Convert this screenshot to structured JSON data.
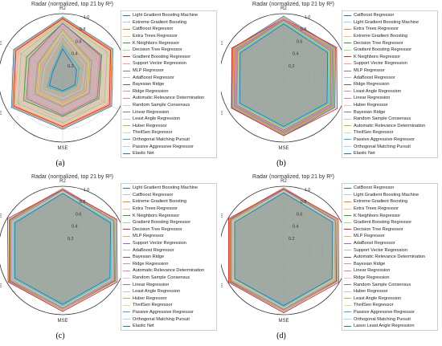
{
  "colors": [
    "#1f77b4",
    "#aec7e8",
    "#ff7f0e",
    "#ffbb78",
    "#2ca02c",
    "#98df8a",
    "#d62728",
    "#ff9896",
    "#9467bd",
    "#c5b0d5",
    "#8c564b",
    "#c49c94",
    "#e377c2",
    "#f7b6d2",
    "#7f7f7f",
    "#c7c7c7",
    "#bcbd22",
    "#dbdb8d",
    "#17becf",
    "#9edae5",
    "#1f77b4"
  ],
  "chart_data": [
    {
      "type": "radar",
      "label": "(a)",
      "title": "Radar (normalized, top 21 by R²)",
      "axes": [
        "R2",
        "RMSE",
        "MAE",
        "MSE",
        "RMSLE",
        "MAPE"
      ],
      "rticks": [
        "0.2",
        "0.4",
        "0.6",
        "0.8",
        "1.0"
      ],
      "series": [
        {
          "name": "Light Gradient Boosting Machine",
          "values": [
            0.95,
            0.9,
            0.88,
            0.8,
            0.92,
            0.88
          ]
        },
        {
          "name": "Extreme Gradient Boosting",
          "values": [
            0.94,
            0.89,
            0.87,
            0.79,
            0.91,
            0.87
          ]
        },
        {
          "name": "CatBoost Regressor",
          "values": [
            0.93,
            0.88,
            0.86,
            0.78,
            0.9,
            0.86
          ]
        },
        {
          "name": "Extra Trees Regressor",
          "values": [
            0.9,
            0.85,
            0.82,
            0.75,
            0.86,
            0.8
          ]
        },
        {
          "name": "K Neighbors Regressor",
          "values": [
            0.85,
            0.7,
            0.65,
            0.6,
            0.7,
            0.65
          ]
        },
        {
          "name": "Decision Tree Regressor",
          "values": [
            0.88,
            0.8,
            0.75,
            0.7,
            0.8,
            0.75
          ]
        },
        {
          "name": "Gradient Boosting Regressor",
          "values": [
            0.92,
            0.86,
            0.84,
            0.76,
            0.88,
            0.84
          ]
        },
        {
          "name": "Support Vector Regression",
          "values": [
            0.8,
            0.65,
            0.6,
            0.55,
            0.62,
            0.58
          ]
        },
        {
          "name": "MLP Regressor",
          "values": [
            0.85,
            0.68,
            0.62,
            0.58,
            0.65,
            0.6
          ]
        },
        {
          "name": "AdaBoost Regressor",
          "values": [
            0.82,
            0.6,
            0.55,
            0.5,
            0.58,
            0.52
          ]
        },
        {
          "name": "Bayesian Ridge",
          "values": [
            0.75,
            0.52,
            0.48,
            0.45,
            0.5,
            0.45
          ]
        },
        {
          "name": "Ridge Regression",
          "values": [
            0.75,
            0.52,
            0.48,
            0.45,
            0.5,
            0.45
          ]
        },
        {
          "name": "Automatic Relevance Determination",
          "values": [
            0.74,
            0.5,
            0.47,
            0.44,
            0.49,
            0.44
          ]
        },
        {
          "name": "Random Sample Consensus",
          "values": [
            0.7,
            0.45,
            0.4,
            0.38,
            0.42,
            0.38
          ]
        },
        {
          "name": "Linear Regression",
          "values": [
            0.74,
            0.5,
            0.46,
            0.43,
            0.48,
            0.43
          ]
        },
        {
          "name": "Least Angle Regression",
          "values": [
            0.74,
            0.5,
            0.46,
            0.43,
            0.48,
            0.43
          ]
        },
        {
          "name": "Huber Regressor",
          "values": [
            0.72,
            0.48,
            0.45,
            0.42,
            0.46,
            0.42
          ]
        },
        {
          "name": "TheilSen Regressor",
          "values": [
            0.71,
            0.47,
            0.44,
            0.41,
            0.45,
            0.41
          ]
        },
        {
          "name": "Orthogonal Matching Pursuit",
          "values": [
            0.5,
            0.3,
            0.25,
            0.22,
            0.28,
            0.2
          ]
        },
        {
          "name": "Passive Aggressive Regressor",
          "values": [
            0.65,
            0.4,
            0.35,
            0.32,
            0.38,
            0.32
          ]
        },
        {
          "name": "Elastic Net",
          "values": [
            0.45,
            0.25,
            0.22,
            0.2,
            0.24,
            0.18
          ]
        }
      ]
    },
    {
      "type": "radar",
      "label": "(b)",
      "title": "Radar (normalized, top 21 by R²)",
      "axes": [
        "R2",
        "RMSE",
        "MAE",
        "MSE",
        "RMSLE",
        "MAPE"
      ],
      "rticks": [
        "0.2",
        "0.4",
        "0.6",
        "0.8",
        "1.0"
      ],
      "series": [
        {
          "name": "CatBoost Regressor",
          "values": [
            0.96,
            0.93,
            0.92,
            0.9,
            0.93,
            0.92
          ]
        },
        {
          "name": "Light Gradient Boosting Machine",
          "values": [
            0.95,
            0.92,
            0.91,
            0.89,
            0.92,
            0.91
          ]
        },
        {
          "name": "Extra Trees Regressor",
          "values": [
            0.94,
            0.91,
            0.9,
            0.88,
            0.91,
            0.9
          ]
        },
        {
          "name": "Extreme Gradient Boosting",
          "values": [
            0.94,
            0.9,
            0.89,
            0.87,
            0.9,
            0.89
          ]
        },
        {
          "name": "Decision Tree Regressor",
          "values": [
            0.93,
            0.89,
            0.88,
            0.86,
            0.89,
            0.88
          ]
        },
        {
          "name": "Gradient Boosting Regressor",
          "values": [
            0.93,
            0.9,
            0.89,
            0.87,
            0.9,
            0.89
          ]
        },
        {
          "name": "K Neighbors Regressor",
          "values": [
            0.92,
            0.95,
            0.96,
            0.9,
            0.94,
            0.93
          ]
        },
        {
          "name": "Support Vector Regression",
          "values": [
            0.92,
            0.88,
            0.87,
            0.85,
            0.88,
            0.87
          ]
        },
        {
          "name": "MLP Regressor",
          "values": [
            0.91,
            0.87,
            0.86,
            0.84,
            0.87,
            0.86
          ]
        },
        {
          "name": "AdaBoost Regressor",
          "values": [
            0.9,
            0.86,
            0.85,
            0.83,
            0.86,
            0.85
          ]
        },
        {
          "name": "Ridge Regression",
          "values": [
            0.9,
            0.85,
            0.84,
            0.82,
            0.85,
            0.84
          ]
        },
        {
          "name": "Least Angle Regression",
          "values": [
            0.9,
            0.85,
            0.84,
            0.82,
            0.85,
            0.84
          ]
        },
        {
          "name": "Linear Regression",
          "values": [
            0.9,
            0.85,
            0.84,
            0.82,
            0.85,
            0.84
          ]
        },
        {
          "name": "Huber Regressor",
          "values": [
            0.89,
            0.84,
            0.83,
            0.81,
            0.84,
            0.83
          ]
        },
        {
          "name": "Bayesian Ridge",
          "values": [
            0.89,
            0.84,
            0.83,
            0.81,
            0.84,
            0.83
          ]
        },
        {
          "name": "Random Sample Consensus",
          "values": [
            0.88,
            0.83,
            0.82,
            0.8,
            0.83,
            0.82
          ]
        },
        {
          "name": "Automatic Relevance Determination",
          "values": [
            0.88,
            0.83,
            0.82,
            0.8,
            0.83,
            0.82
          ]
        },
        {
          "name": "TheilSen Regressor",
          "values": [
            0.87,
            0.82,
            0.81,
            0.79,
            0.82,
            0.81
          ]
        },
        {
          "name": "Passive Aggressive Regressor",
          "values": [
            0.86,
            0.81,
            0.8,
            0.78,
            0.81,
            0.8
          ]
        },
        {
          "name": "Orthogonal Matching Pursuit",
          "values": [
            0.85,
            0.8,
            0.79,
            0.77,
            0.8,
            0.79
          ]
        },
        {
          "name": "Elastic Net",
          "values": [
            0.84,
            0.79,
            0.78,
            0.76,
            0.79,
            0.78
          ]
        }
      ]
    },
    {
      "type": "radar",
      "label": "(c)",
      "title": "Radar (normalized, top 21 by R²)",
      "axes": [
        "R2",
        "RMSE",
        "MAE",
        "MSE",
        "RMSLE",
        "MAPE"
      ],
      "rticks": [
        "0.2",
        "0.4",
        "0.6",
        "0.8",
        "1.0"
      ],
      "series": [
        {
          "name": "Light Gradient Boosting Machine",
          "values": [
            0.97,
            0.95,
            0.95,
            0.93,
            0.96,
            0.96
          ]
        },
        {
          "name": "CatBoost Regressor",
          "values": [
            0.97,
            0.95,
            0.94,
            0.93,
            0.95,
            0.95
          ]
        },
        {
          "name": "Extreme Gradient Boosting",
          "values": [
            0.96,
            0.94,
            0.94,
            0.92,
            0.95,
            0.95
          ]
        },
        {
          "name": "Extra Trees Regressor",
          "values": [
            0.96,
            0.94,
            0.93,
            0.92,
            0.94,
            0.94
          ]
        },
        {
          "name": "K Neighbors Regressor",
          "values": [
            0.95,
            0.93,
            0.93,
            0.91,
            0.94,
            0.94
          ]
        },
        {
          "name": "Gradient Boosting Regressor",
          "values": [
            0.95,
            0.93,
            0.92,
            0.91,
            0.93,
            0.93
          ]
        },
        {
          "name": "Decision Tree Regressor",
          "values": [
            0.95,
            0.97,
            0.98,
            0.95,
            0.98,
            0.99
          ]
        },
        {
          "name": "MLP Regressor",
          "values": [
            0.94,
            0.92,
            0.92,
            0.9,
            0.93,
            0.93
          ]
        },
        {
          "name": "Support Vector Regression",
          "values": [
            0.94,
            0.92,
            0.91,
            0.9,
            0.92,
            0.92
          ]
        },
        {
          "name": "AdaBoost Regressor",
          "values": [
            0.93,
            0.91,
            0.91,
            0.89,
            0.92,
            0.92
          ]
        },
        {
          "name": "Bayesian Ridge",
          "values": [
            0.93,
            0.91,
            0.9,
            0.89,
            0.91,
            0.91
          ]
        },
        {
          "name": "Ridge Regression",
          "values": [
            0.93,
            0.91,
            0.9,
            0.89,
            0.91,
            0.91
          ]
        },
        {
          "name": "Automatic Relevance Determination",
          "values": [
            0.92,
            0.9,
            0.9,
            0.88,
            0.91,
            0.91
          ]
        },
        {
          "name": "Random Sample Consensus",
          "values": [
            0.92,
            0.9,
            0.89,
            0.88,
            0.9,
            0.9
          ]
        },
        {
          "name": "Linear Regression",
          "values": [
            0.92,
            0.9,
            0.89,
            0.88,
            0.9,
            0.9
          ]
        },
        {
          "name": "Least Angle Regression",
          "values": [
            0.92,
            0.9,
            0.89,
            0.88,
            0.9,
            0.9
          ]
        },
        {
          "name": "Huber Regressor",
          "values": [
            0.91,
            0.89,
            0.88,
            0.87,
            0.89,
            0.89
          ]
        },
        {
          "name": "TheilSen Regressor",
          "values": [
            0.91,
            0.89,
            0.88,
            0.87,
            0.89,
            0.89
          ]
        },
        {
          "name": "Passive Aggressive Regressor",
          "values": [
            0.9,
            0.88,
            0.87,
            0.86,
            0.88,
            0.88
          ]
        },
        {
          "name": "Orthogonal Matching Pursuit",
          "values": [
            0.9,
            0.87,
            0.86,
            0.85,
            0.87,
            0.87
          ]
        },
        {
          "name": "Elastic Net",
          "values": [
            0.89,
            0.86,
            0.85,
            0.84,
            0.86,
            0.86
          ]
        }
      ]
    },
    {
      "type": "radar",
      "label": "(d)",
      "title": "Radar (normalized, top 21 by R²)",
      "axes": [
        "R2",
        "RMSE",
        "MAE",
        "MSE",
        "RMSLE",
        "MAPE"
      ],
      "rticks": [
        "0.2",
        "0.4",
        "0.6",
        "0.8",
        "1.0"
      ],
      "series": [
        {
          "name": "CatBoost Regressor",
          "values": [
            0.98,
            0.96,
            0.96,
            0.95,
            0.97,
            0.97
          ]
        },
        {
          "name": "Light Gradient Boosting Machine",
          "values": [
            0.98,
            0.96,
            0.95,
            0.95,
            0.96,
            0.96
          ]
        },
        {
          "name": "Extreme Gradient Boosting",
          "values": [
            0.97,
            0.95,
            0.95,
            0.94,
            0.96,
            0.96
          ]
        },
        {
          "name": "Extra Trees Regressor",
          "values": [
            0.97,
            0.95,
            0.94,
            0.94,
            0.95,
            0.95
          ]
        },
        {
          "name": "K Neighbors Regressor",
          "values": [
            0.96,
            0.94,
            0.94,
            0.93,
            0.95,
            0.95
          ]
        },
        {
          "name": "Gradient Boosting Regressor",
          "values": [
            0.96,
            0.94,
            0.93,
            0.93,
            0.94,
            0.94
          ]
        },
        {
          "name": "Decision Tree Regressor",
          "values": [
            0.96,
            0.98,
            0.99,
            0.97,
            0.99,
            0.99
          ]
        },
        {
          "name": "MLP Regressor",
          "values": [
            0.95,
            0.93,
            0.93,
            0.92,
            0.94,
            0.94
          ]
        },
        {
          "name": "AdaBoost Regressor",
          "values": [
            0.95,
            0.93,
            0.92,
            0.92,
            0.93,
            0.93
          ]
        },
        {
          "name": "Support Vector Regression",
          "values": [
            0.94,
            0.92,
            0.92,
            0.91,
            0.93,
            0.93
          ]
        },
        {
          "name": "Automatic Relevance Determination",
          "values": [
            0.94,
            0.92,
            0.91,
            0.91,
            0.92,
            0.92
          ]
        },
        {
          "name": "Bayesian Ridge",
          "values": [
            0.94,
            0.92,
            0.91,
            0.91,
            0.92,
            0.92
          ]
        },
        {
          "name": "Linear Regression",
          "values": [
            0.93,
            0.91,
            0.91,
            0.9,
            0.92,
            0.92
          ]
        },
        {
          "name": "Ridge Regression",
          "values": [
            0.93,
            0.91,
            0.91,
            0.9,
            0.92,
            0.92
          ]
        },
        {
          "name": "Random Sample Consensus",
          "values": [
            0.93,
            0.91,
            0.9,
            0.9,
            0.91,
            0.91
          ]
        },
        {
          "name": "Huber Regressor",
          "values": [
            0.93,
            0.91,
            0.9,
            0.9,
            0.91,
            0.91
          ]
        },
        {
          "name": "Least Angle Regression",
          "values": [
            0.92,
            0.9,
            0.9,
            0.89,
            0.91,
            0.91
          ]
        },
        {
          "name": "TheilSen Regressor",
          "values": [
            0.92,
            0.9,
            0.89,
            0.89,
            0.9,
            0.9
          ]
        },
        {
          "name": "Passive Aggressive Regressor",
          "values": [
            0.91,
            0.89,
            0.88,
            0.88,
            0.89,
            0.89
          ]
        },
        {
          "name": "Orthogonal Matching Pursuit",
          "values": [
            0.91,
            0.89,
            0.88,
            0.87,
            0.89,
            0.89
          ]
        },
        {
          "name": "Lasso Least Angle Regression",
          "values": [
            0.9,
            0.88,
            0.87,
            0.86,
            0.88,
            0.88
          ]
        }
      ]
    }
  ]
}
